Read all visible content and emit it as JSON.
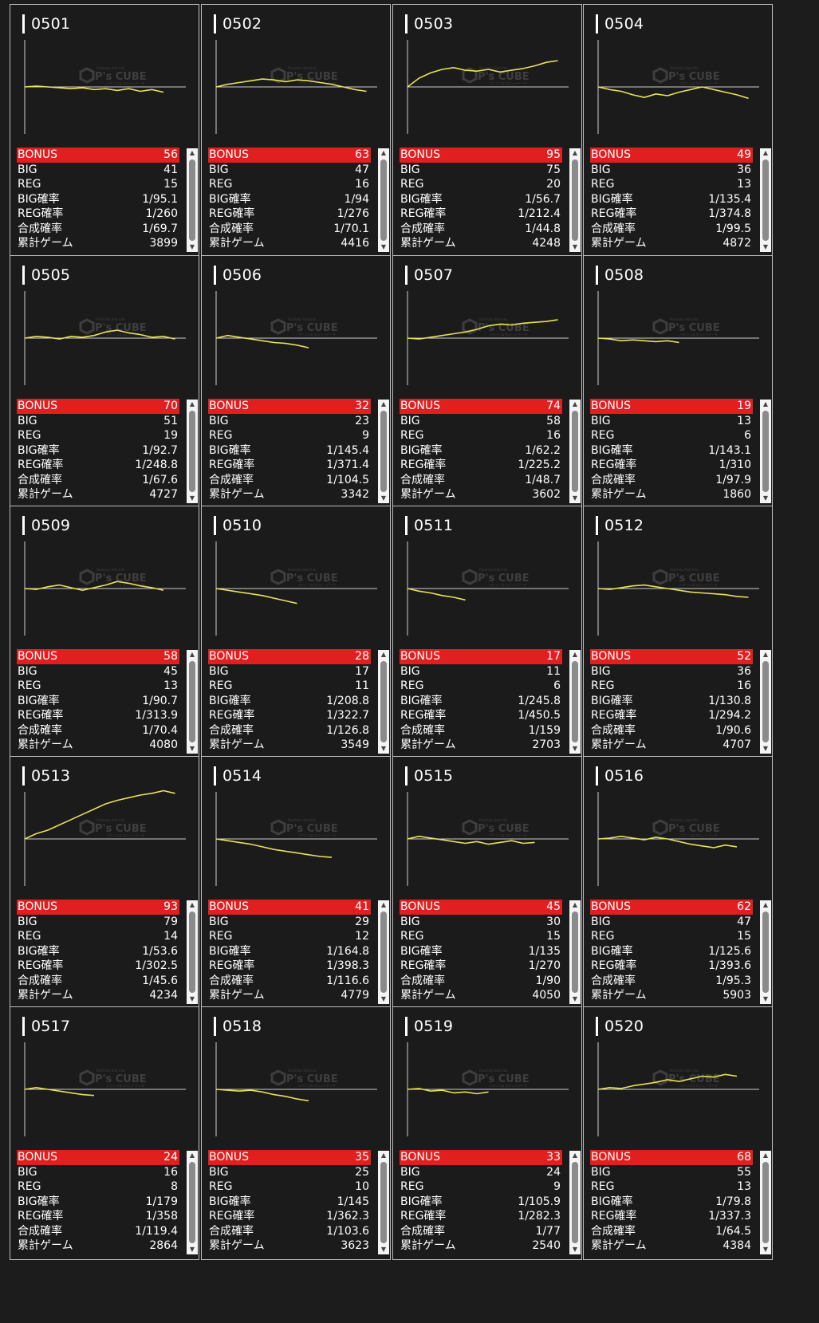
{
  "watermark": {
    "brand": "P's CUBE",
    "small_top": "Pachinko Slot Info",
    "small_bottom": "パチンコ＆スロットデータ"
  },
  "row_labels": [
    "BIG",
    "REG",
    "BIG確率",
    "REG確率",
    "合成確率",
    "累計ゲーム"
  ],
  "bonus_label": "BONUS",
  "colors": {
    "line": "#e8e05a",
    "bonus_bg": "#e21f1f",
    "axis": "#cfcfcf"
  },
  "machines": [
    {
      "id": "0501",
      "bonus": "56",
      "big": "41",
      "reg": "15",
      "big_rate": "1/95.1",
      "reg_rate": "1/260",
      "combined_rate": "1/69.7",
      "total_games": "3899",
      "graph": [
        0,
        1,
        0,
        -1,
        -2,
        -1,
        -3,
        -2,
        -4,
        -2,
        -5,
        -3,
        -6
      ]
    },
    {
      "id": "0502",
      "bonus": "63",
      "big": "47",
      "reg": "16",
      "big_rate": "1/94",
      "reg_rate": "1/276",
      "combined_rate": "1/70.1",
      "total_games": "4416",
      "graph": [
        0,
        3,
        5,
        7,
        9,
        8,
        6,
        8,
        7,
        5,
        3,
        0,
        -3,
        -5
      ]
    },
    {
      "id": "0503",
      "bonus": "95",
      "big": "75",
      "reg": "20",
      "big_rate": "1/56.7",
      "reg_rate": "1/212.4",
      "combined_rate": "1/44.8",
      "total_games": "4248",
      "graph": [
        0,
        10,
        16,
        20,
        22,
        19,
        18,
        20,
        17,
        19,
        21,
        24,
        28,
        30
      ]
    },
    {
      "id": "0504",
      "bonus": "49",
      "big": "36",
      "reg": "13",
      "big_rate": "1/135.4",
      "reg_rate": "1/374.8",
      "combined_rate": "1/99.5",
      "total_games": "4872",
      "graph": [
        0,
        -3,
        -5,
        -9,
        -12,
        -8,
        -10,
        -6,
        -3,
        0,
        -3,
        -6,
        -9,
        -13
      ]
    },
    {
      "id": "0505",
      "bonus": "70",
      "big": "51",
      "reg": "19",
      "big_rate": "1/92.7",
      "reg_rate": "1/248.8",
      "combined_rate": "1/67.6",
      "total_games": "4727",
      "graph": [
        0,
        2,
        1,
        -1,
        2,
        1,
        3,
        7,
        9,
        6,
        4,
        1,
        2,
        -1
      ]
    },
    {
      "id": "0506",
      "bonus": "32",
      "big": "23",
      "reg": "9",
      "big_rate": "1/145.4",
      "reg_rate": "1/371.4",
      "combined_rate": "1/104.5",
      "total_games": "3342",
      "graph": [
        0,
        3,
        1,
        -1,
        -3,
        -5,
        -6,
        -8,
        -11
      ]
    },
    {
      "id": "0507",
      "bonus": "74",
      "big": "58",
      "reg": "16",
      "big_rate": "1/62.2",
      "reg_rate": "1/225.2",
      "combined_rate": "1/48.7",
      "total_games": "3602",
      "graph": [
        0,
        -1,
        1,
        3,
        5,
        7,
        10,
        14,
        16,
        15,
        17,
        18,
        19,
        21
      ]
    },
    {
      "id": "0508",
      "bonus": "19",
      "big": "13",
      "reg": "6",
      "big_rate": "1/143.1",
      "reg_rate": "1/310",
      "combined_rate": "1/97.9",
      "total_games": "1860",
      "graph": [
        0,
        -1,
        -3,
        -2,
        -3,
        -4,
        -3,
        -5
      ]
    },
    {
      "id": "0509",
      "bonus": "58",
      "big": "45",
      "reg": "13",
      "big_rate": "1/90.7",
      "reg_rate": "1/313.9",
      "combined_rate": "1/70.4",
      "total_games": "4080",
      "graph": [
        0,
        -1,
        2,
        4,
        1,
        -2,
        1,
        4,
        8,
        6,
        3,
        1,
        -2
      ]
    },
    {
      "id": "0510",
      "bonus": "28",
      "big": "17",
      "reg": "11",
      "big_rate": "1/208.8",
      "reg_rate": "1/322.7",
      "combined_rate": "1/126.8",
      "total_games": "3549",
      "graph": [
        0,
        -2,
        -4,
        -6,
        -8,
        -11,
        -14,
        -17
      ]
    },
    {
      "id": "0511",
      "bonus": "17",
      "big": "11",
      "reg": "6",
      "big_rate": "1/245.8",
      "reg_rate": "1/450.5",
      "combined_rate": "1/159",
      "total_games": "2703",
      "graph": [
        0,
        -3,
        -5,
        -8,
        -10,
        -13
      ]
    },
    {
      "id": "0512",
      "bonus": "52",
      "big": "36",
      "reg": "16",
      "big_rate": "1/130.8",
      "reg_rate": "1/294.2",
      "combined_rate": "1/90.6",
      "total_games": "4707",
      "graph": [
        0,
        -1,
        1,
        3,
        4,
        2,
        0,
        -2,
        -4,
        -5,
        -6,
        -7,
        -9,
        -10
      ]
    },
    {
      "id": "0513",
      "bonus": "93",
      "big": "79",
      "reg": "14",
      "big_rate": "1/53.6",
      "reg_rate": "1/302.5",
      "combined_rate": "1/45.6",
      "total_games": "4234",
      "graph": [
        0,
        6,
        10,
        16,
        22,
        28,
        34,
        40,
        44,
        47,
        50,
        52,
        55,
        52
      ]
    },
    {
      "id": "0514",
      "bonus": "41",
      "big": "29",
      "reg": "12",
      "big_rate": "1/164.8",
      "reg_rate": "1/398.3",
      "combined_rate": "1/116.6",
      "total_games": "4779",
      "graph": [
        0,
        -2,
        -4,
        -6,
        -9,
        -12,
        -14,
        -16,
        -18,
        -20,
        -21
      ]
    },
    {
      "id": "0515",
      "bonus": "45",
      "big": "30",
      "reg": "15",
      "big_rate": "1/135",
      "reg_rate": "1/270",
      "combined_rate": "1/90",
      "total_games": "4050",
      "graph": [
        0,
        3,
        1,
        -1,
        -3,
        -5,
        -3,
        -6,
        -4,
        -2,
        -5,
        -4
      ]
    },
    {
      "id": "0516",
      "bonus": "62",
      "big": "47",
      "reg": "15",
      "big_rate": "1/125.6",
      "reg_rate": "1/393.6",
      "combined_rate": "1/95.3",
      "total_games": "5903",
      "graph": [
        0,
        1,
        3,
        1,
        -1,
        2,
        0,
        -3,
        -6,
        -8,
        -10,
        -7,
        -9
      ]
    },
    {
      "id": "0517",
      "bonus": "24",
      "big": "16",
      "reg": "8",
      "big_rate": "1/179",
      "reg_rate": "1/358",
      "combined_rate": "1/119.4",
      "total_games": "2864",
      "graph": [
        0,
        2,
        0,
        -2,
        -4,
        -6,
        -7
      ]
    },
    {
      "id": "0518",
      "bonus": "35",
      "big": "25",
      "reg": "10",
      "big_rate": "1/145",
      "reg_rate": "1/362.3",
      "combined_rate": "1/103.6",
      "total_games": "3623",
      "graph": [
        0,
        -1,
        -2,
        -1,
        -3,
        -6,
        -8,
        -11,
        -13
      ]
    },
    {
      "id": "0519",
      "bonus": "33",
      "big": "24",
      "reg": "9",
      "big_rate": "1/105.9",
      "reg_rate": "1/282.3",
      "combined_rate": "1/77",
      "total_games": "2540",
      "graph": [
        0,
        1,
        -2,
        -1,
        -4,
        -3,
        -5,
        -3
      ]
    },
    {
      "id": "0520",
      "bonus": "68",
      "big": "55",
      "reg": "13",
      "big_rate": "1/79.8",
      "reg_rate": "1/337.3",
      "combined_rate": "1/64.5",
      "total_games": "4384",
      "graph": [
        0,
        2,
        1,
        4,
        6,
        8,
        11,
        9,
        12,
        15,
        14,
        17,
        15
      ]
    }
  ]
}
